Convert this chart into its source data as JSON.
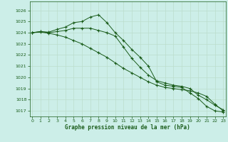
{
  "title": "Graphe pression niveau de la mer (hPa)",
  "background_color": "#cceee8",
  "grid_color": "#bbddcc",
  "line_color": "#1a5c1a",
  "xlim": [
    -0.3,
    23.3
  ],
  "ylim": [
    1016.5,
    1026.8
  ],
  "yticks": [
    1017,
    1018,
    1019,
    1020,
    1021,
    1022,
    1023,
    1024,
    1025,
    1026
  ],
  "xticks": [
    0,
    1,
    2,
    3,
    4,
    5,
    6,
    7,
    8,
    9,
    10,
    11,
    12,
    13,
    14,
    15,
    16,
    17,
    18,
    19,
    20,
    21,
    22,
    23
  ],
  "series": [
    [
      1024.0,
      1024.1,
      1024.05,
      1024.3,
      1024.5,
      1024.9,
      1025.0,
      1025.4,
      1025.6,
      1024.9,
      1024.0,
      1023.3,
      1022.5,
      1021.8,
      1021.0,
      1019.6,
      1019.3,
      1019.2,
      1019.1,
      1018.6,
      1018.1,
      1017.4,
      1017.0,
      1016.9
    ],
    [
      1024.0,
      1024.1,
      1024.0,
      1024.1,
      1024.2,
      1024.4,
      1024.4,
      1024.4,
      1024.2,
      1024.0,
      1023.7,
      1022.7,
      1021.7,
      1020.9,
      1020.2,
      1019.7,
      1019.5,
      1019.3,
      1019.2,
      1019.0,
      1018.4,
      1018.0,
      1017.5,
      1017.1
    ],
    [
      1024.0,
      1024.05,
      1023.95,
      1023.8,
      1023.6,
      1023.3,
      1023.0,
      1022.6,
      1022.2,
      1021.8,
      1021.3,
      1020.8,
      1020.4,
      1020.0,
      1019.6,
      1019.3,
      1019.1,
      1019.0,
      1018.9,
      1018.8,
      1018.6,
      1018.3,
      1017.6,
      1017.0
    ]
  ]
}
